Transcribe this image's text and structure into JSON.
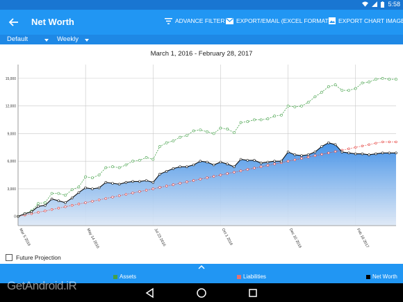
{
  "status_bar": {
    "time": "5:58"
  },
  "app_bar": {
    "title": "Net Worth",
    "actions": [
      {
        "label": "ADVANCE FILTER",
        "icon": "filter-icon"
      },
      {
        "label": "EXPORT/EMAIL (EXCEL FORMAT)",
        "icon": "email-icon"
      },
      {
        "label": "EXPORT CHART IMAGE",
        "icon": "image-icon"
      }
    ]
  },
  "filters": {
    "account_group": "Default",
    "period": "Weekly"
  },
  "chart_data": {
    "type": "line",
    "title": "March 1, 2016 - February 28, 2017",
    "y_ticks": [
      "0",
      "3,000",
      "6,000",
      "9,000",
      "12,000",
      "15,000"
    ],
    "ylim": [
      -1000,
      16500
    ],
    "x_tick_labels": [
      "Mar 5 2016",
      "May 14 2016",
      "Jul 23 2016",
      "Oct 1 2016",
      "Dec 10 2016",
      "Feb 18 2017"
    ],
    "x_tick_indices": [
      0,
      10,
      20,
      30,
      40,
      50
    ],
    "grid": true,
    "legend_position": "bottom",
    "series": [
      {
        "name": "Assets",
        "color": "#43a047",
        "values": [
          0,
          300,
          600,
          1400,
          1500,
          2500,
          2500,
          2300,
          2900,
          3200,
          4300,
          4200,
          4500,
          5300,
          5400,
          5300,
          5600,
          6000,
          6100,
          6400,
          6200,
          7600,
          8000,
          8200,
          8600,
          8800,
          9300,
          9400,
          9200,
          9000,
          9600,
          9500,
          9100,
          10200,
          10300,
          10500,
          10500,
          10600,
          10900,
          11000,
          12000,
          11900,
          12000,
          12400,
          13000,
          13500,
          14100,
          14300,
          13700,
          13700,
          13900,
          14500,
          14600,
          14900,
          15000,
          14900,
          14900
        ]
      },
      {
        "name": "Liabilities",
        "color": "#e53935",
        "values": [
          0,
          150,
          300,
          450,
          600,
          750,
          900,
          1050,
          1200,
          1350,
          1500,
          1650,
          1800,
          1950,
          2100,
          2250,
          2400,
          2550,
          2700,
          2850,
          3000,
          3150,
          3300,
          3450,
          3600,
          3750,
          3900,
          4050,
          4200,
          4350,
          4500,
          4650,
          4800,
          4950,
          5100,
          5250,
          5400,
          5550,
          5700,
          5850,
          6000,
          6150,
          6300,
          6450,
          6600,
          6750,
          6900,
          7050,
          7200,
          7350,
          7500,
          7650,
          7800,
          7950,
          8100,
          8100,
          8100
        ]
      },
      {
        "name": "Net Worth",
        "color": "#111111",
        "values": [
          0,
          300,
          500,
          1100,
          1200,
          1900,
          1700,
          1500,
          2000,
          2600,
          3100,
          3000,
          3100,
          3700,
          3600,
          3500,
          3700,
          3800,
          3800,
          3900,
          3700,
          4600,
          4900,
          5200,
          5400,
          5400,
          5600,
          6000,
          5900,
          5600,
          5900,
          5700,
          5400,
          6200,
          6100,
          6100,
          5800,
          5900,
          6000,
          6000,
          7000,
          6700,
          6600,
          6700,
          7000,
          7600,
          8000,
          7800,
          7000,
          6900,
          6800,
          6800,
          6700,
          6800,
          6900,
          6900,
          6900
        ]
      }
    ]
  },
  "future_projection": {
    "label": "Future Projection",
    "checked": false
  },
  "legend": [
    {
      "label": "Assets",
      "color": "#43a047"
    },
    {
      "label": "Liabilities",
      "color": "#e57373"
    },
    {
      "label": "Net Worth",
      "color": "#000000"
    }
  ],
  "watermark": "GetAndroid.iR"
}
